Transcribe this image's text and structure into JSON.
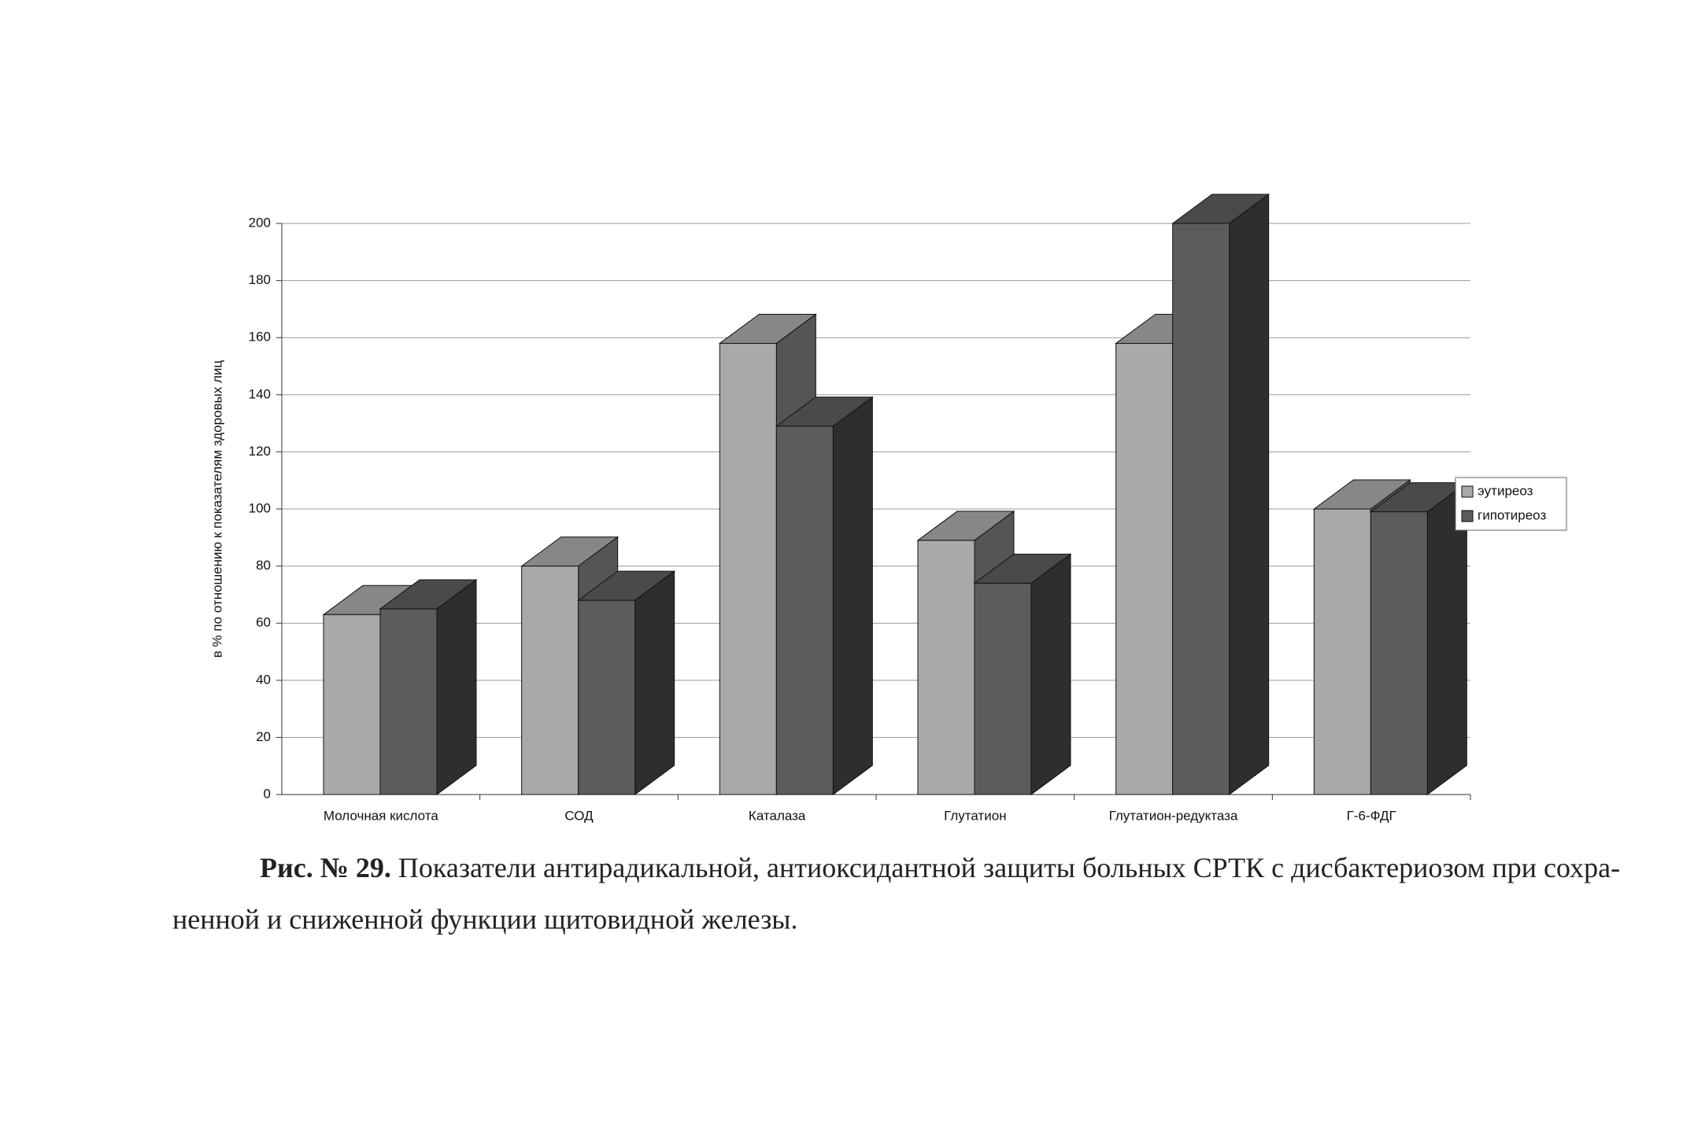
{
  "chart_data": {
    "type": "bar3d",
    "y_label": "в % по отношению к показателям здоровых лиц",
    "categories": [
      "Молочная кислота",
      "СОД",
      "Каталаза",
      "Глутатион",
      "Глутатион-редуктаза",
      "Г-6-ФДГ"
    ],
    "series": [
      {
        "name": "эутиреоз",
        "color": "#a9a9a9",
        "values": [
          63,
          80,
          158,
          89,
          158,
          100
        ]
      },
      {
        "name": "гипотиреоз",
        "color": "#5c5c5c",
        "values": [
          65,
          68,
          129,
          74,
          200,
          99
        ]
      }
    ],
    "ylim": [
      0,
      200
    ],
    "yticks": [
      0,
      20,
      40,
      60,
      80,
      100,
      120,
      140,
      160,
      180,
      200
    ],
    "grid": true,
    "legend": "right"
  },
  "caption": {
    "label": "Рис. № 29.",
    "lines": [
      "Показатели антирадикальной, антиоксидантной защиты больных СРТК с дисбактериозом при сохра-",
      "ненной и сниженной функции щитовидной железы."
    ]
  }
}
